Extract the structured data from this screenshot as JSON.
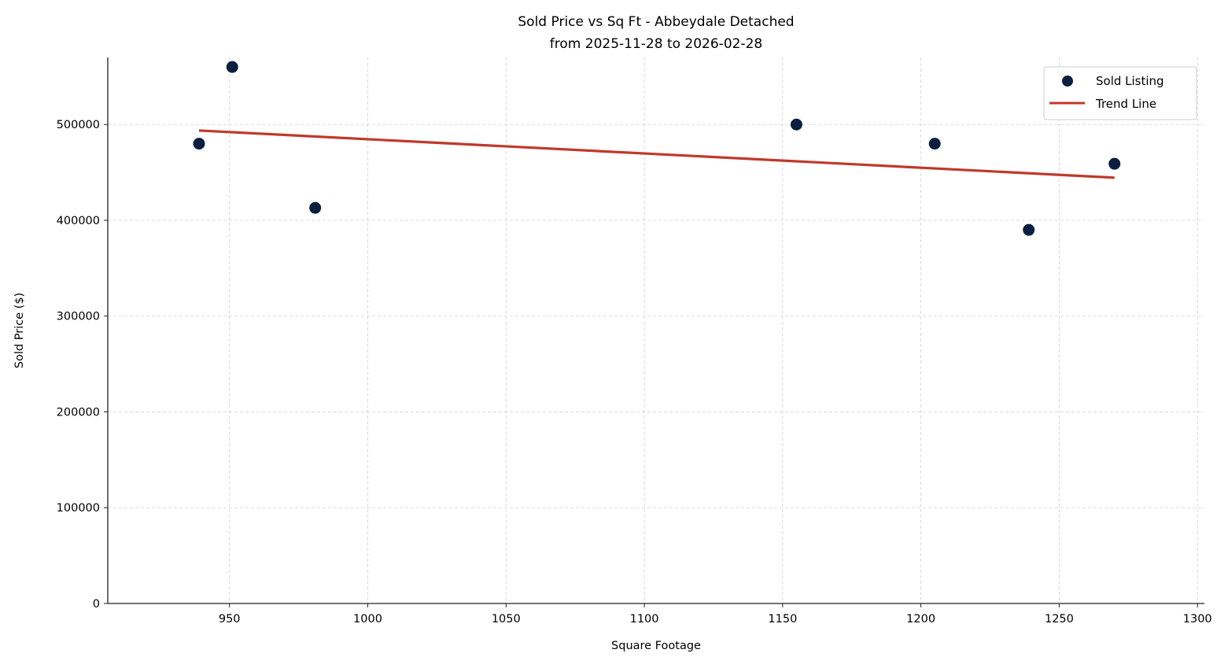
{
  "chart_data": {
    "type": "scatter",
    "title": "Sold Price vs Sq Ft - Abbeydale Detached",
    "subtitle": "from 2025-11-28 to 2026-02-28",
    "xlabel": "Square Footage",
    "ylabel": "Sold Price ($)",
    "xlim": [
      906,
      1302.5
    ],
    "ylim": [
      0,
      570000
    ],
    "xticks": [
      950,
      1000,
      1050,
      1100,
      1150,
      1200,
      1250,
      1300
    ],
    "yticks": [
      0,
      100000,
      200000,
      300000,
      400000,
      500000
    ],
    "grid": true,
    "legend_position": "top-right",
    "series": [
      {
        "name": "Sold Listing",
        "type": "scatter",
        "color": "#0b2040",
        "x": [
          939,
          951,
          981,
          1155,
          1205,
          1239,
          1270
        ],
        "y": [
          480000,
          560000,
          413000,
          500000,
          480000,
          390000,
          459000
        ]
      },
      {
        "name": "Trend Line",
        "type": "line",
        "color": "#c0392b",
        "x": [
          939,
          1270
        ],
        "y": [
          493700,
          444500
        ]
      }
    ]
  }
}
